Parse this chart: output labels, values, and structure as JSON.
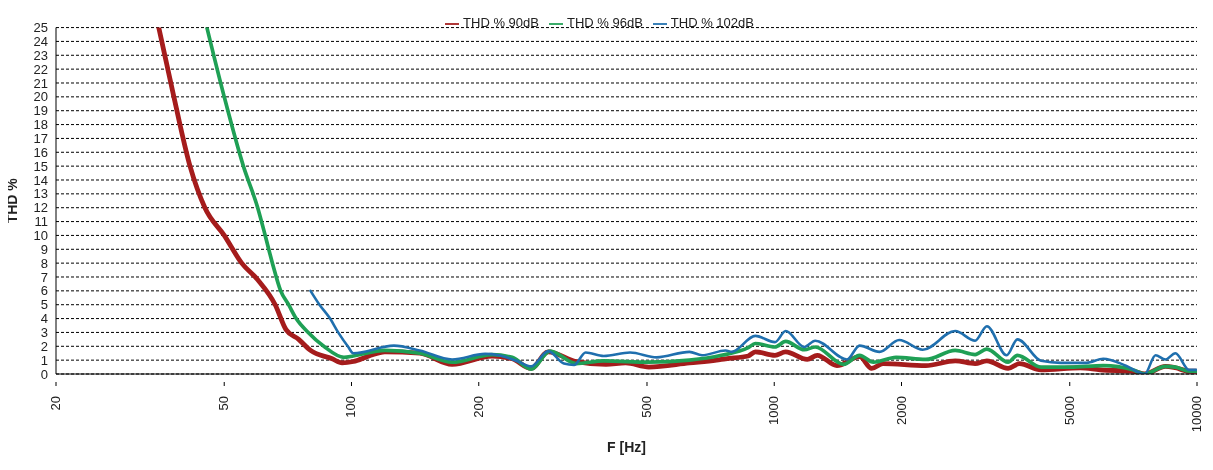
{
  "chart_data": {
    "type": "line",
    "xlabel": "F [Hz]",
    "ylabel": "THD %",
    "log": "x",
    "xlim": [
      20,
      10000
    ],
    "xticks": [
      20,
      50,
      100,
      200,
      500,
      1000,
      2000,
      5000,
      10000
    ],
    "ylim": [
      0,
      25
    ],
    "yticks": [
      0,
      1,
      2,
      3,
      4,
      5,
      6,
      7,
      8,
      9,
      10,
      11,
      12,
      13,
      14,
      15,
      16,
      17,
      18,
      19,
      20,
      21,
      22,
      23,
      24,
      25
    ],
    "grid": "y",
    "legend": "top",
    "marker": "none",
    "line_style": "solid",
    "series": [
      {
        "name": "THD % 90dB",
        "color": "#a51c1c",
        "x": [
          35,
          38,
          41.5,
          45,
          50,
          55,
          60,
          66,
          70,
          75,
          80,
          90,
          95,
          101,
          110,
          120,
          145,
          173,
          215,
          240,
          266,
          292,
          340,
          400,
          445,
          505,
          630,
          730,
          767,
          868,
          902,
          1004,
          1064,
          1197,
          1264,
          1407,
          1592,
          1700,
          1808,
          2282,
          2680,
          2986,
          3184,
          3574,
          3803,
          4277,
          5300,
          5900,
          7050,
          7520,
          8420,
          8890,
          9580,
          9950
        ],
        "values": [
          25,
          20,
          15,
          12,
          10,
          8,
          6.8,
          5,
          3.2,
          2.5,
          1.7,
          1.1,
          0.8,
          0.9,
          1.3,
          1.6,
          1.5,
          0.7,
          1.3,
          1.1,
          0.4,
          1.6,
          0.9,
          0.7,
          0.8,
          0.5,
          0.8,
          1,
          1.1,
          1.3,
          1.6,
          1.35,
          1.6,
          1.05,
          1.35,
          0.6,
          1.25,
          0.4,
          0.75,
          0.6,
          0.95,
          0.75,
          0.95,
          0.4,
          0.75,
          0.3,
          0.45,
          0.3,
          0.2,
          0,
          0.55,
          0.45,
          0.2,
          0.2
        ]
      },
      {
        "name": "THD % 96dB",
        "color": "#1fa055",
        "x": [
          45.5,
          50,
          55.5,
          60,
          62.5,
          65,
          68,
          71,
          74,
          79,
          86,
          96,
          101,
          120,
          145,
          173,
          215,
          240,
          266,
          295,
          340,
          395,
          505,
          630,
          750,
          868,
          902,
          1004,
          1064,
          1178,
          1250,
          1459,
          1592,
          1716,
          1942,
          2282,
          2680,
          2986,
          3184,
          3574,
          3760,
          4277,
          5020,
          6000,
          7050,
          7520,
          8420,
          8890,
          9580,
          9950
        ],
        "values": [
          25,
          20,
          15,
          12,
          10,
          8,
          6,
          5,
          4,
          3,
          2,
          1.2,
          1.3,
          1.7,
          1.5,
          0.85,
          1.4,
          1.2,
          0.35,
          1.65,
          0.75,
          0.95,
          0.85,
          1,
          1.35,
          1.9,
          2.2,
          1.95,
          2.35,
          1.75,
          1.95,
          0.7,
          1.35,
          0.85,
          1.2,
          1.05,
          1.7,
          1.4,
          1.8,
          0.85,
          1.35,
          0.5,
          0.5,
          0.6,
          0.3,
          0,
          0.55,
          0.5,
          0.2,
          0.2
        ]
      },
      {
        "name": "THD % 102dB",
        "color": "#1f6fae",
        "x": [
          80,
          84,
          89,
          93,
          98,
          101,
          126,
          145,
          173,
          207,
          223,
          248,
          266,
          292,
          318,
          336,
          358,
          395,
          456,
          527,
          630,
          675,
          767,
          793,
          902,
          1004,
          1064,
          1178,
          1250,
          1486,
          1592,
          1774,
          1975,
          2245,
          2680,
          2986,
          3184,
          3546,
          3760,
          4277,
          4766,
          5480,
          6000,
          6790,
          7520,
          7980,
          8420,
          8890,
          9580,
          9950
        ],
        "values": [
          6,
          5,
          4,
          3,
          2,
          1.5,
          2.05,
          1.7,
          1.05,
          1.45,
          1.35,
          0.9,
          0.55,
          1.65,
          0.75,
          0.65,
          1.55,
          1.3,
          1.55,
          1.2,
          1.6,
          1.35,
          1.7,
          1.6,
          2.75,
          2.3,
          3.1,
          1.95,
          2.4,
          1.05,
          2.05,
          1.6,
          2.45,
          1.75,
          3.1,
          2.4,
          3.45,
          1.35,
          2.5,
          0.95,
          0.8,
          0.8,
          1.1,
          0.6,
          0,
          1.35,
          1.05,
          1.5,
          0.3,
          0.3
        ]
      }
    ]
  }
}
